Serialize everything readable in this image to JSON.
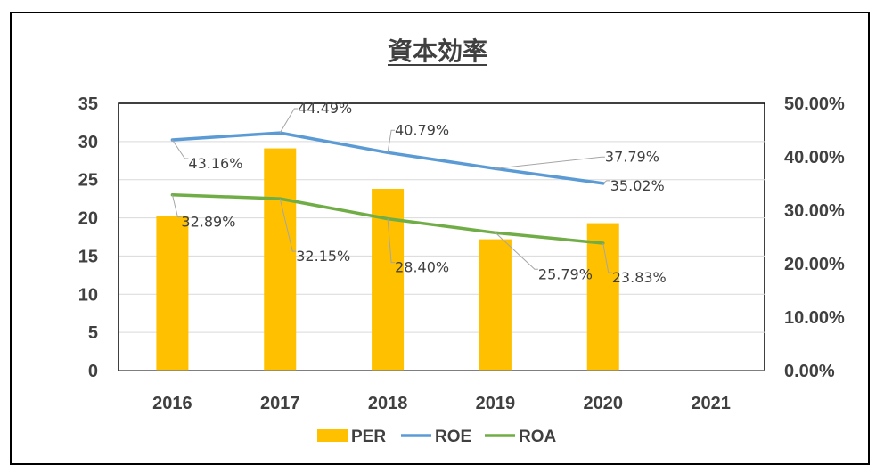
{
  "chart_data": {
    "type": "bar",
    "title": "資本効率",
    "categories": [
      "2016",
      "2017",
      "2018",
      "2019",
      "2020",
      "2021"
    ],
    "y_left": {
      "min": 0,
      "max": 35,
      "ticks": [
        "0",
        "5",
        "10",
        "15",
        "20",
        "25",
        "30",
        "35"
      ]
    },
    "y_right": {
      "min": 0,
      "max": 0.5,
      "ticks": [
        "0.00%",
        "10.00%",
        "20.00%",
        "30.00%",
        "40.00%",
        "50.00%"
      ]
    },
    "series": [
      {
        "name": "PER",
        "kind": "bar",
        "axis": "left",
        "color": "#FFC000",
        "values": [
          20.3,
          29.1,
          23.8,
          17.2,
          19.3,
          null
        ]
      },
      {
        "name": "ROE",
        "kind": "line",
        "axis": "right",
        "color": "#5B9BD5",
        "values": [
          0.4316,
          0.4449,
          0.4079,
          0.3779,
          0.3502,
          null
        ],
        "labels": [
          "43.16%",
          "44.49%",
          "40.79%",
          "37.79%",
          "35.02%",
          ""
        ]
      },
      {
        "name": "ROA",
        "kind": "line",
        "axis": "right",
        "color": "#70AD47",
        "values": [
          0.3289,
          0.3215,
          0.284,
          0.2579,
          0.2383,
          null
        ],
        "labels": [
          "32.89%",
          "32.15%",
          "28.40%",
          "25.79%",
          "23.83%",
          ""
        ]
      }
    ],
    "grid": true,
    "legend_position": "bottom"
  }
}
